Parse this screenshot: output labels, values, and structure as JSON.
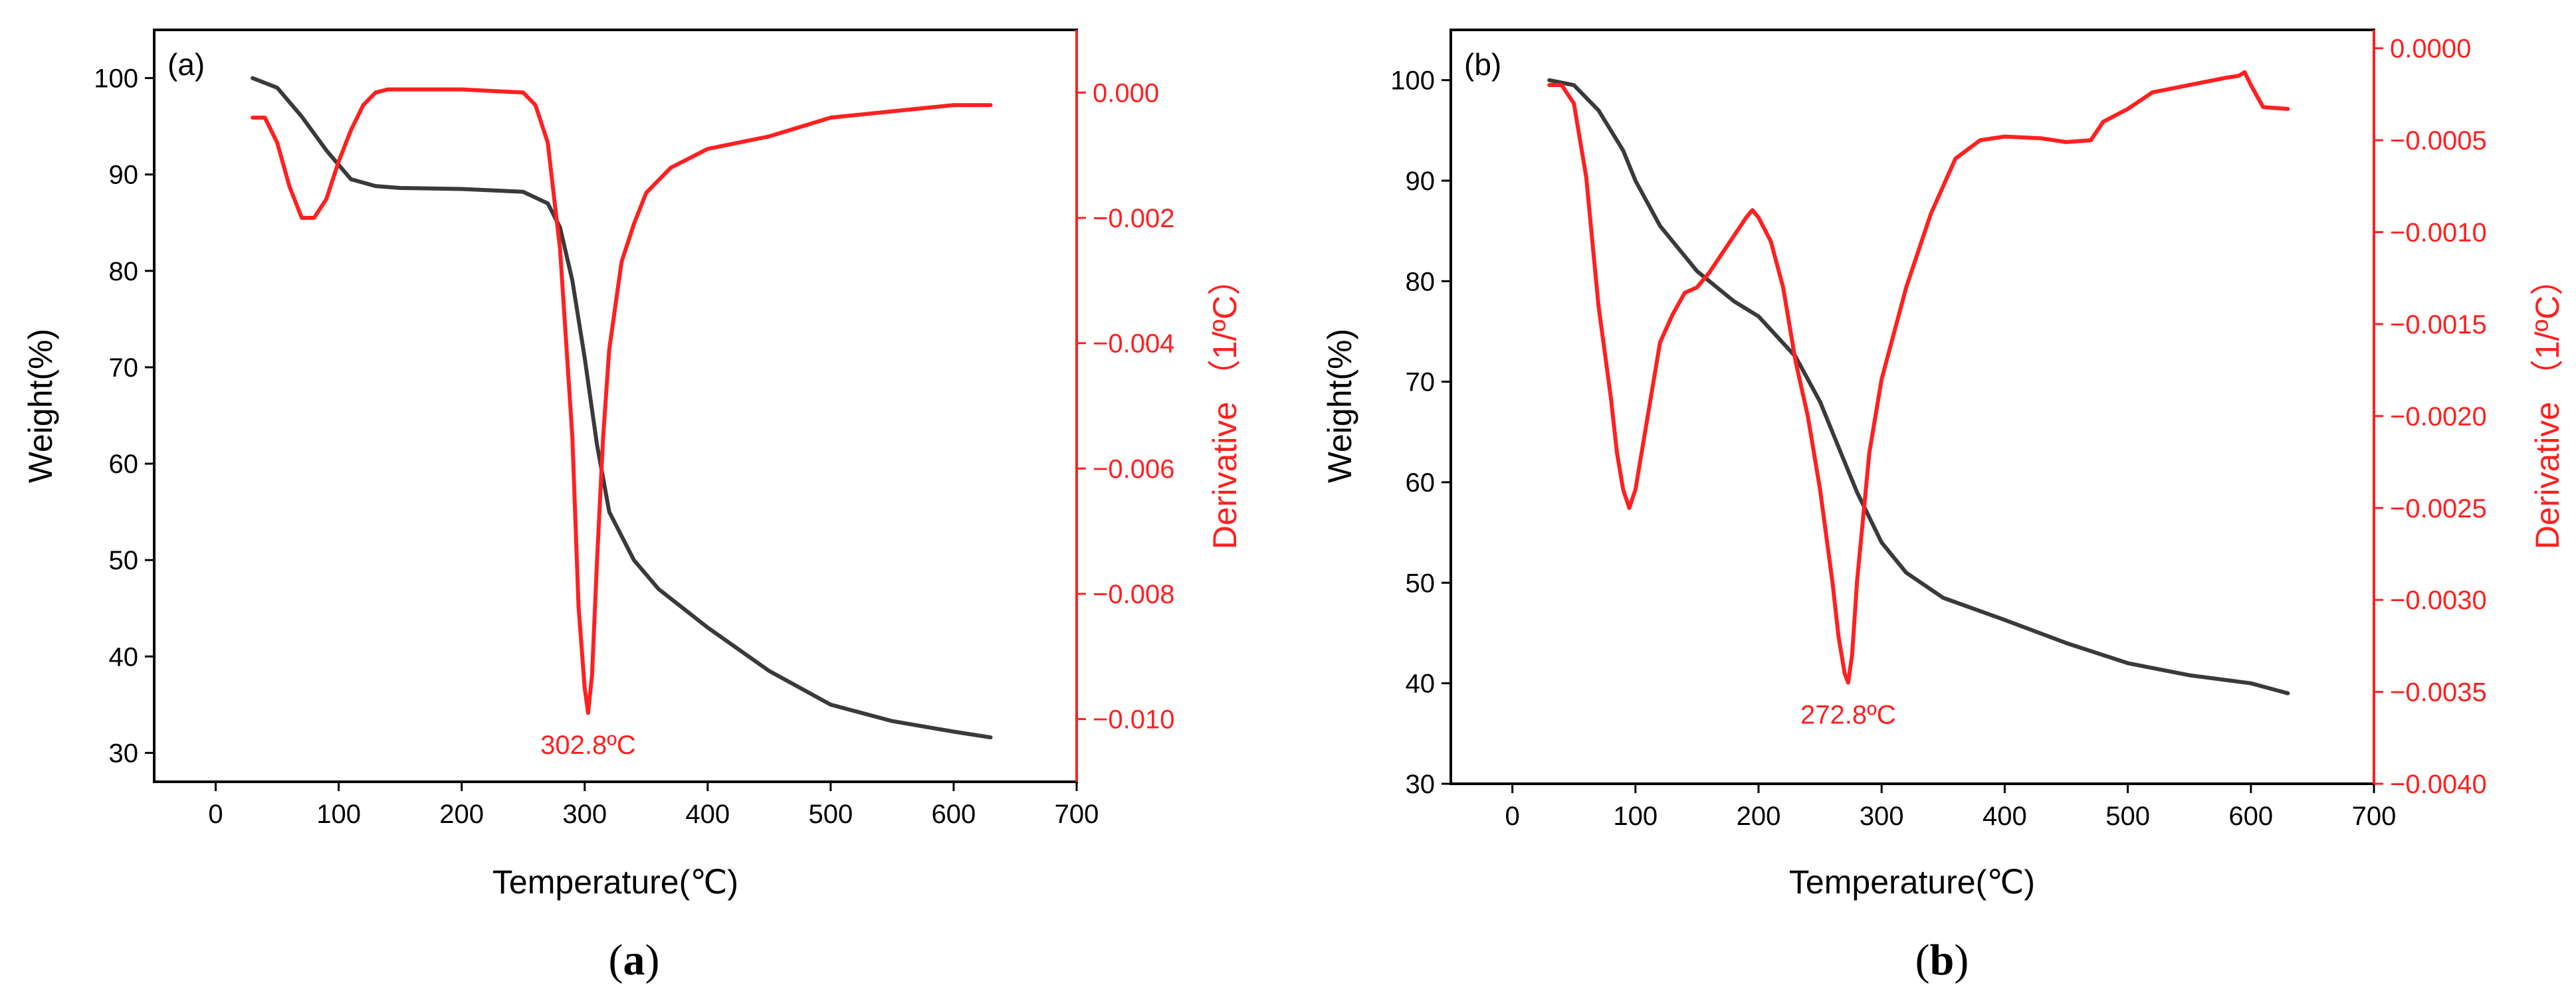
{
  "figure": {
    "captions": [
      "(a)",
      "(b)"
    ]
  },
  "colors": {
    "weight": "#3a3a3a",
    "derivative": "#ff2020",
    "axis": "#000000"
  },
  "chart_data": [
    {
      "type": "line",
      "panel_label": "(a)",
      "caption": {
        "open": "(",
        "letter": "a",
        "close": ")"
      },
      "xlabel": "Temperature(℃)",
      "ylabel": "Weight(%)",
      "y2label": "Derivative （1/ºC）",
      "xlim": [
        -50,
        700
      ],
      "ylim": [
        27,
        105
      ],
      "y2lim": [
        -0.011,
        0.001
      ],
      "x_ticks": [
        0,
        100,
        200,
        300,
        400,
        500,
        600,
        700
      ],
      "x_tick_labels": [
        "0",
        "100",
        "200",
        "300",
        "400",
        "500",
        "600",
        "700"
      ],
      "y_ticks": [
        30,
        40,
        50,
        60,
        70,
        80,
        90,
        100
      ],
      "y_tick_labels": [
        "30",
        "40",
        "50",
        "60",
        "70",
        "80",
        "90",
        "100"
      ],
      "y2_ticks": [
        0.0,
        -0.002,
        -0.004,
        -0.006,
        -0.008,
        -0.01
      ],
      "y2_tick_labels": [
        "0.000",
        "−0.002",
        "−0.004",
        "−0.006",
        "−0.008",
        "−0.010"
      ],
      "annotation": {
        "text": "302.8ºC",
        "x": 302.8,
        "y2": -0.0099
      },
      "series": [
        {
          "name": "Weight",
          "axis": "left",
          "color": "#3a3a3a",
          "x": [
            30,
            50,
            70,
            90,
            110,
            130,
            150,
            200,
            250,
            270,
            280,
            290,
            300,
            310,
            320,
            340,
            360,
            400,
            450,
            500,
            550,
            600,
            630
          ],
          "y": [
            100,
            99,
            96,
            92.5,
            89.5,
            88.8,
            88.6,
            88.5,
            88.2,
            87,
            84.5,
            79,
            71,
            62,
            55,
            50,
            47,
            43,
            38.5,
            35,
            33.3,
            32.2,
            31.6
          ]
        },
        {
          "name": "Derivative",
          "axis": "right",
          "color": "#ff2020",
          "x": [
            30,
            40,
            50,
            60,
            70,
            80,
            90,
            100,
            110,
            120,
            130,
            140,
            150,
            200,
            250,
            260,
            270,
            280,
            290,
            295,
            300,
            302.8,
            306,
            310,
            315,
            320,
            330,
            340,
            350,
            370,
            400,
            450,
            500,
            550,
            600,
            630
          ],
          "y": [
            -0.0004,
            -0.0004,
            -0.0008,
            -0.0015,
            -0.002,
            -0.002,
            -0.0017,
            -0.0011,
            -0.0006,
            -0.0002,
            0,
            5e-05,
            5e-05,
            5e-05,
            0,
            -0.0002,
            -0.0008,
            -0.0025,
            -0.0055,
            -0.0082,
            -0.0095,
            -0.0099,
            -0.0093,
            -0.0075,
            -0.0055,
            -0.0041,
            -0.0027,
            -0.0021,
            -0.0016,
            -0.0012,
            -0.0009,
            -0.0007,
            -0.0004,
            -0.0003,
            -0.0002,
            -0.0002
          ]
        }
      ]
    },
    {
      "type": "line",
      "panel_label": "(b)",
      "caption": {
        "open": "(",
        "letter": "b",
        "close": ")"
      },
      "xlabel": "Temperature(℃)",
      "ylabel": "Weight(%)",
      "y2label": "Derivative （1/ºC）",
      "xlim": [
        -50,
        700
      ],
      "ylim": [
        30,
        105
      ],
      "y2lim": [
        -0.004,
        0.0001
      ],
      "x_ticks": [
        0,
        100,
        200,
        300,
        400,
        500,
        600,
        700
      ],
      "x_tick_labels": [
        "0",
        "100",
        "200",
        "300",
        "400",
        "500",
        "600",
        "700"
      ],
      "y_ticks": [
        30,
        40,
        50,
        60,
        70,
        80,
        90,
        100
      ],
      "y_tick_labels": [
        "30",
        "40",
        "50",
        "60",
        "70",
        "80",
        "90",
        "100"
      ],
      "y2_ticks": [
        0.0,
        -0.0005,
        -0.001,
        -0.0015,
        -0.002,
        -0.0025,
        -0.003,
        -0.0035,
        -0.004
      ],
      "y2_tick_labels": [
        "0.0000",
        "−0.0005",
        "−0.0010",
        "−0.0015",
        "−0.0020",
        "−0.0025",
        "−0.0030",
        "−0.0035",
        "−0.0040"
      ],
      "annotation": {
        "text": "272.8ºC",
        "x": 272.8,
        "y2": -0.00345
      },
      "series": [
        {
          "name": "Weight",
          "axis": "left",
          "color": "#3a3a3a",
          "x": [
            30,
            50,
            70,
            90,
            100,
            120,
            150,
            180,
            200,
            230,
            250,
            270,
            280,
            300,
            320,
            350,
            400,
            450,
            500,
            550,
            600,
            630
          ],
          "y": [
            100,
            99.5,
            97,
            93,
            90,
            85.5,
            81,
            78,
            76.5,
            72.5,
            68,
            62,
            59,
            54,
            51,
            48.5,
            46.3,
            44,
            42,
            40.8,
            40,
            39
          ]
        },
        {
          "name": "Derivative",
          "axis": "right",
          "color": "#ff2020",
          "x": [
            30,
            40,
            50,
            60,
            70,
            80,
            85,
            90,
            95,
            100,
            110,
            120,
            130,
            140,
            150,
            160,
            170,
            180,
            190,
            195,
            200,
            210,
            220,
            230,
            240,
            250,
            260,
            265,
            270,
            272.8,
            276,
            280,
            290,
            300,
            320,
            340,
            360,
            380,
            400,
            430,
            450,
            470,
            480,
            500,
            520,
            550,
            580,
            590,
            595,
            600,
            610,
            630
          ],
          "y": [
            -0.0002,
            -0.0002,
            -0.0003,
            -0.0007,
            -0.0014,
            -0.0019,
            -0.0022,
            -0.0024,
            -0.0025,
            -0.0024,
            -0.002,
            -0.0016,
            -0.00145,
            -0.00133,
            -0.0013,
            -0.00122,
            -0.00112,
            -0.00102,
            -0.00092,
            -0.00088,
            -0.00092,
            -0.00105,
            -0.0013,
            -0.0017,
            -0.002,
            -0.0024,
            -0.0029,
            -0.0032,
            -0.0034,
            -0.00345,
            -0.0033,
            -0.0029,
            -0.0022,
            -0.0018,
            -0.0013,
            -0.0009,
            -0.0006,
            -0.0005,
            -0.00048,
            -0.00049,
            -0.00051,
            -0.0005,
            -0.0004,
            -0.00033,
            -0.00024,
            -0.0002,
            -0.00016,
            -0.00015,
            -0.00013,
            -0.0002,
            -0.00032,
            -0.00033
          ]
        }
      ]
    }
  ]
}
